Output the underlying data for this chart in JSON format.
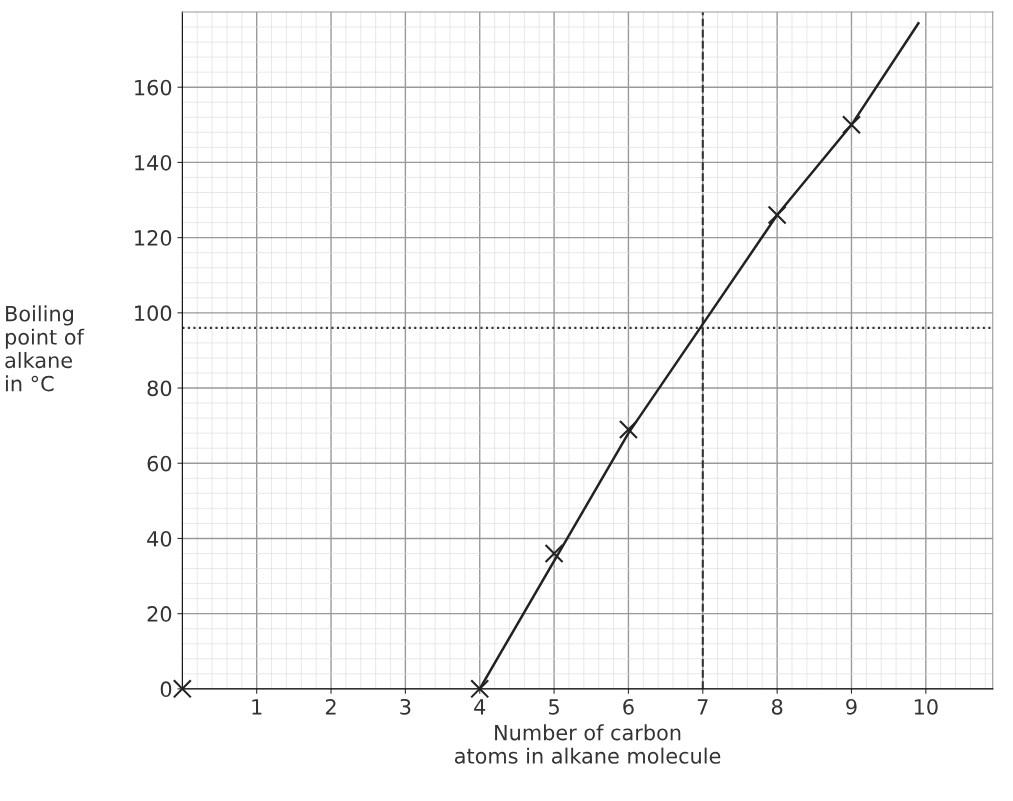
{
  "chart_data": {
    "type": "scatter",
    "xlabel": "Number of carbon\natoms in alkane molecule",
    "ylabel": "Boiling\npoint of\nalkane\nin °C",
    "xlim": [
      0,
      10.9
    ],
    "ylim": [
      0,
      180
    ],
    "xticks": [
      1,
      2,
      3,
      4,
      5,
      6,
      7,
      8,
      9,
      10
    ],
    "yticks": [
      0,
      20,
      40,
      60,
      80,
      100,
      120,
      140,
      160
    ],
    "grid": true,
    "marker": "cross",
    "series": [
      {
        "color": "#222222",
        "x": [
          0,
          4,
          5,
          6,
          8,
          9
        ],
        "values": [
          0,
          0,
          36,
          69,
          126,
          150
        ]
      },
      {
        "type": "line",
        "color": "#222222",
        "x": [
          4,
          6,
          7,
          8,
          9,
          9.9
        ],
        "values": [
          0,
          68,
          97,
          126,
          150,
          177
        ],
        "marker": "none",
        "line_style": "solid"
      }
    ],
    "ref_lines": [
      {
        "axis": "y",
        "value": 96,
        "color": "#333333",
        "line_style": "dotted"
      },
      {
        "axis": "x",
        "value": 7,
        "color": "#333333",
        "line_style": "dashed"
      }
    ]
  }
}
